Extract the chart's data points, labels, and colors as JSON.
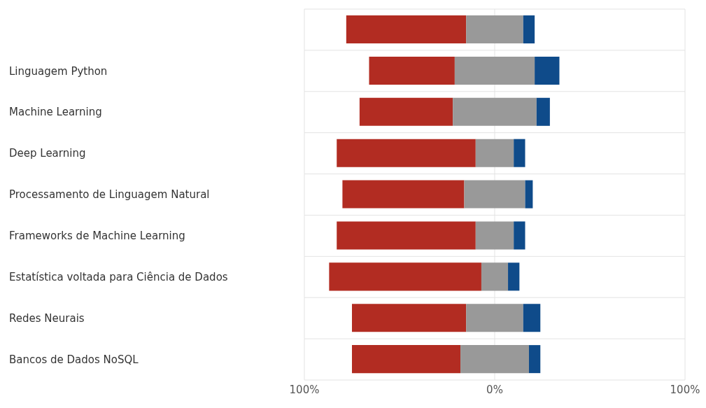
{
  "chart_data": {
    "type": "bar",
    "orientation": "horizontal",
    "categories": [
      null,
      "Linguagem Python",
      "Machine Learning",
      "Deep Learning",
      "Processamento de Linguagem Natural",
      "Frameworks de Machine Learning",
      "Estatística voltada para Ciência de Dados",
      "Redes Neurais",
      "Bancos de Dados NoSQL"
    ],
    "series": [
      {
        "color": "#b22c22",
        "base": [
          -78,
          -66,
          -71,
          -83,
          -80,
          -83,
          -87,
          -75,
          -75
        ],
        "values": [
          63,
          45,
          49,
          73,
          64,
          73,
          80,
          60,
          57
        ]
      },
      {
        "color": "#999999",
        "base": [
          -15,
          -21,
          -22,
          -10,
          -16,
          -10,
          -7,
          -15,
          -18
        ],
        "values": [
          30,
          42,
          44,
          20,
          32,
          20,
          14,
          30,
          36
        ]
      },
      {
        "color": "#0f4b8a",
        "base": [
          15,
          21,
          22,
          10,
          16,
          10,
          7,
          15,
          18
        ],
        "values": [
          6,
          13,
          7,
          6,
          4,
          6,
          6,
          9,
          6
        ]
      }
    ],
    "xlim": [
      -100,
      100
    ],
    "xticks": [
      {
        "value": -100,
        "label": "100%"
      },
      {
        "value": 0,
        "label": "0%"
      },
      {
        "value": 100,
        "label": "100%"
      }
    ],
    "grid": true
  }
}
